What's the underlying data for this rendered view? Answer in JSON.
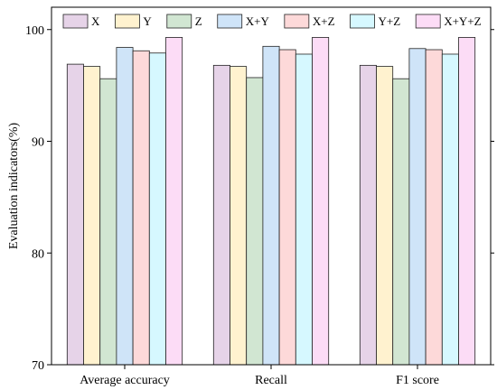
{
  "chart_data": {
    "type": "bar",
    "title": "",
    "xlabel": "",
    "ylabel": "Evaluation indicators(%)",
    "ylim": [
      70,
      102
    ],
    "yticks": [
      70,
      80,
      90,
      100
    ],
    "grid": false,
    "legend_position": "top",
    "categories": [
      "Average accuracy",
      "Recall",
      "F1 score"
    ],
    "series": [
      {
        "name": "X",
        "color": "#e6d3e8",
        "values": [
          96.9,
          96.8,
          96.8
        ]
      },
      {
        "name": "Y",
        "color": "#fff2cf",
        "values": [
          96.7,
          96.7,
          96.7
        ]
      },
      {
        "name": "Z",
        "color": "#d1e6d2",
        "values": [
          95.6,
          95.7,
          95.6
        ]
      },
      {
        "name": "X+Y",
        "color": "#cfe4f8",
        "values": [
          98.4,
          98.5,
          98.3
        ]
      },
      {
        "name": "X+Z",
        "color": "#fdd9d9",
        "values": [
          98.1,
          98.2,
          98.2
        ]
      },
      {
        "name": "Y+Z",
        "color": "#d6f8ff",
        "values": [
          97.9,
          97.8,
          97.8
        ]
      },
      {
        "name": "X+Y+Z",
        "color": "#fcdcf6",
        "values": [
          99.3,
          99.3,
          99.3
        ]
      }
    ]
  }
}
